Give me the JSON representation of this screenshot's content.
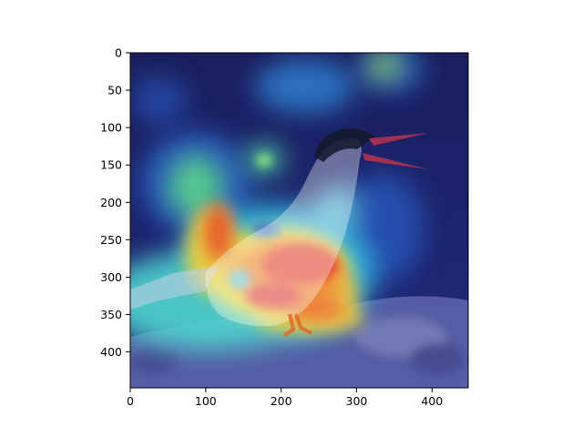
{
  "chart_data": {
    "type": "heatmap",
    "title": "",
    "xlabel": "",
    "ylabel": "",
    "xlim": [
      0,
      448
    ],
    "ylim": [
      448,
      0
    ],
    "x_ticks": [
      {
        "value": 0,
        "label": "0"
      },
      {
        "value": 100,
        "label": "100"
      },
      {
        "value": 200,
        "label": "200"
      },
      {
        "value": 300,
        "label": "300"
      },
      {
        "value": 400,
        "label": "400"
      }
    ],
    "y_ticks": [
      {
        "value": 0,
        "label": "0"
      },
      {
        "value": 50,
        "label": "50"
      },
      {
        "value": 100,
        "label": "100"
      },
      {
        "value": 150,
        "label": "150"
      },
      {
        "value": 200,
        "label": "200"
      },
      {
        "value": 250,
        "label": "250"
      },
      {
        "value": 300,
        "label": "300"
      },
      {
        "value": 350,
        "label": "350"
      },
      {
        "value": 400,
        "label": "400"
      }
    ],
    "colormap": "jet",
    "background": "bird (tern) photograph overlaid with attention heatmap",
    "grid": false,
    "hotspots": [
      {
        "x": 260,
        "y": 300,
        "intensity": 1.0
      },
      {
        "x": 200,
        "y": 270,
        "intensity": 0.9
      },
      {
        "x": 300,
        "y": 310,
        "intensity": 0.85
      },
      {
        "x": 110,
        "y": 260,
        "intensity": 0.75
      },
      {
        "x": 250,
        "y": 345,
        "intensity": 0.8
      },
      {
        "x": 80,
        "y": 180,
        "intensity": 0.5
      },
      {
        "x": 175,
        "y": 145,
        "intensity": 0.45
      },
      {
        "x": 280,
        "y": 180,
        "intensity": 0.5
      },
      {
        "x": 330,
        "y": 20,
        "intensity": 0.45
      },
      {
        "x": 390,
        "y": 40,
        "intensity": 0.35
      }
    ],
    "cold_spots": [
      {
        "x": 145,
        "y": 300,
        "intensity": 0.45
      },
      {
        "x": 180,
        "y": 235,
        "intensity": 0.4
      }
    ]
  }
}
